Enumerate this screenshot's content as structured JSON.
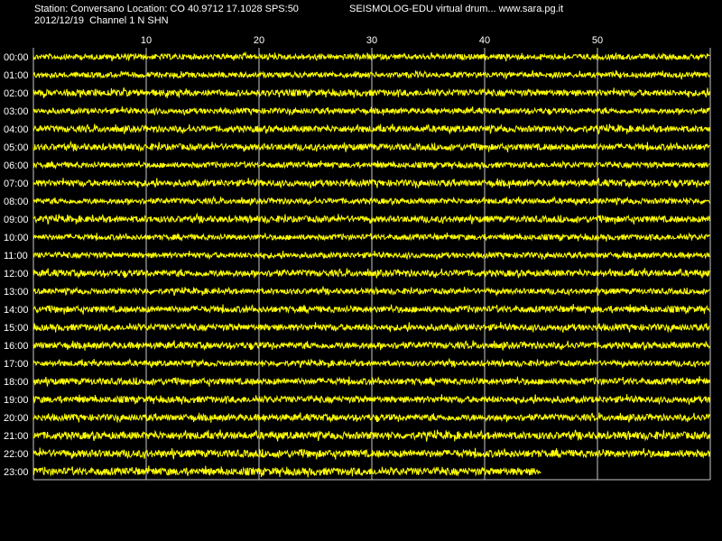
{
  "header": {
    "station_line": "Station: Conversano Location: CO 40.9712 17.1028 SPS:50",
    "app_line": "SEISMOLOG-EDU virtual drum... www.sara.pg.it",
    "date_line": "2012/12/19  Channel 1 N SHN"
  },
  "colors": {
    "background": "#000000",
    "trace": "#ffff00",
    "grid": "#c8c8c8",
    "text": "#ffffff"
  },
  "chart_data": {
    "type": "line",
    "title": "",
    "xlabel": "",
    "ylabel": "",
    "x_unit": "minutes",
    "xlim": [
      0,
      60
    ],
    "x_ticks": [
      10,
      20,
      30,
      40,
      50
    ],
    "x_tick_labels": [
      "10",
      "20",
      "30",
      "40",
      "50"
    ],
    "grid": true,
    "rows": [
      {
        "label": "00:00",
        "end_minute": 60,
        "amplitude": 3
      },
      {
        "label": "01:00",
        "end_minute": 60,
        "amplitude": 3
      },
      {
        "label": "02:00",
        "end_minute": 60,
        "amplitude": 3.5
      },
      {
        "label": "03:00",
        "end_minute": 60,
        "amplitude": 3
      },
      {
        "label": "04:00",
        "end_minute": 60,
        "amplitude": 3.5
      },
      {
        "label": "05:00",
        "end_minute": 60,
        "amplitude": 3.5
      },
      {
        "label": "06:00",
        "end_minute": 60,
        "amplitude": 3
      },
      {
        "label": "07:00",
        "end_minute": 60,
        "amplitude": 3.5
      },
      {
        "label": "08:00",
        "end_minute": 60,
        "amplitude": 3
      },
      {
        "label": "09:00",
        "end_minute": 60,
        "amplitude": 3.5
      },
      {
        "label": "10:00",
        "end_minute": 60,
        "amplitude": 3
      },
      {
        "label": "11:00",
        "end_minute": 60,
        "amplitude": 3
      },
      {
        "label": "12:00",
        "end_minute": 60,
        "amplitude": 3.5
      },
      {
        "label": "13:00",
        "end_minute": 60,
        "amplitude": 3
      },
      {
        "label": "14:00",
        "end_minute": 60,
        "amplitude": 3.5
      },
      {
        "label": "15:00",
        "end_minute": 60,
        "amplitude": 3.5
      },
      {
        "label": "16:00",
        "end_minute": 60,
        "amplitude": 3.5
      },
      {
        "label": "17:00",
        "end_minute": 60,
        "amplitude": 3
      },
      {
        "label": "18:00",
        "end_minute": 60,
        "amplitude": 3.5
      },
      {
        "label": "19:00",
        "end_minute": 60,
        "amplitude": 3.5
      },
      {
        "label": "20:00",
        "end_minute": 60,
        "amplitude": 3.5
      },
      {
        "label": "21:00",
        "end_minute": 60,
        "amplitude": 4
      },
      {
        "label": "22:00",
        "end_minute": 60,
        "amplitude": 4
      },
      {
        "label": "23:00",
        "end_minute": 45,
        "amplitude": 4
      }
    ]
  }
}
